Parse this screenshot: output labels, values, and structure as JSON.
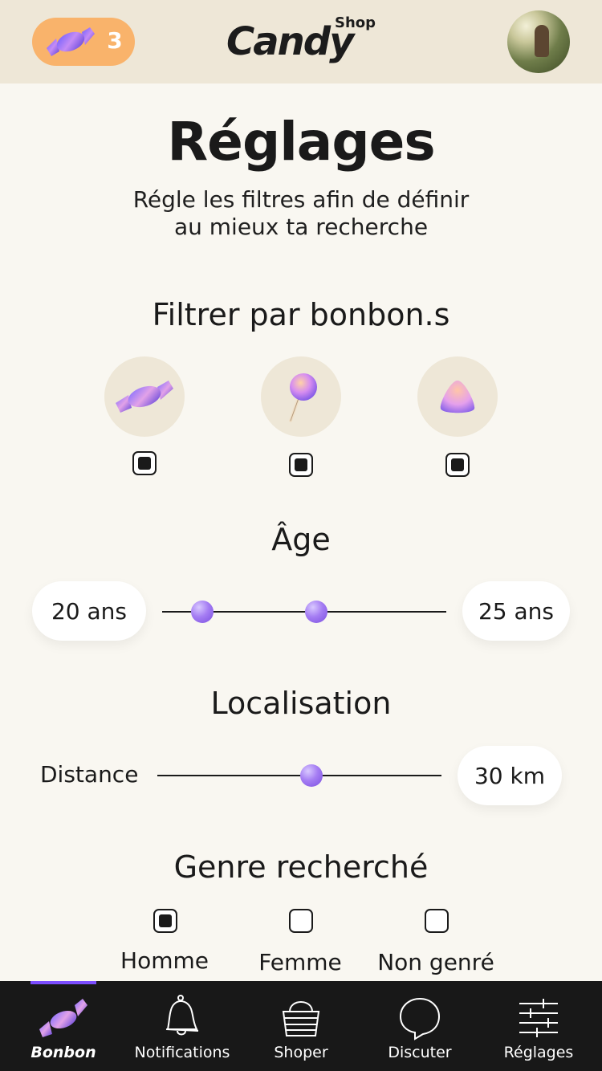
{
  "header": {
    "candy_count": "3",
    "logo_main": "Candy",
    "logo_sub": "Shop",
    "avatar": "user-avatar"
  },
  "page": {
    "title": "Réglages",
    "subtitle_line1": "Régle les filtres afin de définir",
    "subtitle_line2": "au mieux ta recherche"
  },
  "candy_filter": {
    "title": "Filtrer par bonbon.s",
    "options": [
      {
        "icon": "wrapped-candy-icon",
        "checked": true
      },
      {
        "icon": "lollipop-icon",
        "checked": true
      },
      {
        "icon": "gumdrop-icon",
        "checked": true
      }
    ]
  },
  "age": {
    "title": "Âge",
    "min_label": "20 ans",
    "max_label": "25 ans",
    "min_value": 20,
    "max_value": 25
  },
  "location": {
    "title": "Localisation",
    "distance_label": "Distance",
    "distance_value": "30 km",
    "distance_fraction": 0.54
  },
  "genre": {
    "title": "Genre recherché",
    "options": [
      {
        "label": "Homme",
        "checked": true
      },
      {
        "label": "Femme",
        "checked": false
      },
      {
        "label": "Non genré",
        "checked": false
      }
    ]
  },
  "tabbar": {
    "tabs": [
      {
        "label": "Bonbon",
        "icon": "candy-icon",
        "active": true
      },
      {
        "label": "Notifications",
        "icon": "bell-icon",
        "active": false
      },
      {
        "label": "Shoper",
        "icon": "basket-icon",
        "active": false
      },
      {
        "label": "Discuter",
        "icon": "chat-icon",
        "active": false
      },
      {
        "label": "Réglages",
        "icon": "sliders-icon",
        "active": false
      }
    ]
  },
  "colors": {
    "accent": "#7c4dff",
    "badge": "#f9b36b",
    "header_bg": "#eee7d7",
    "page_bg": "#f9f7f1",
    "tabbar_bg": "#181818"
  }
}
